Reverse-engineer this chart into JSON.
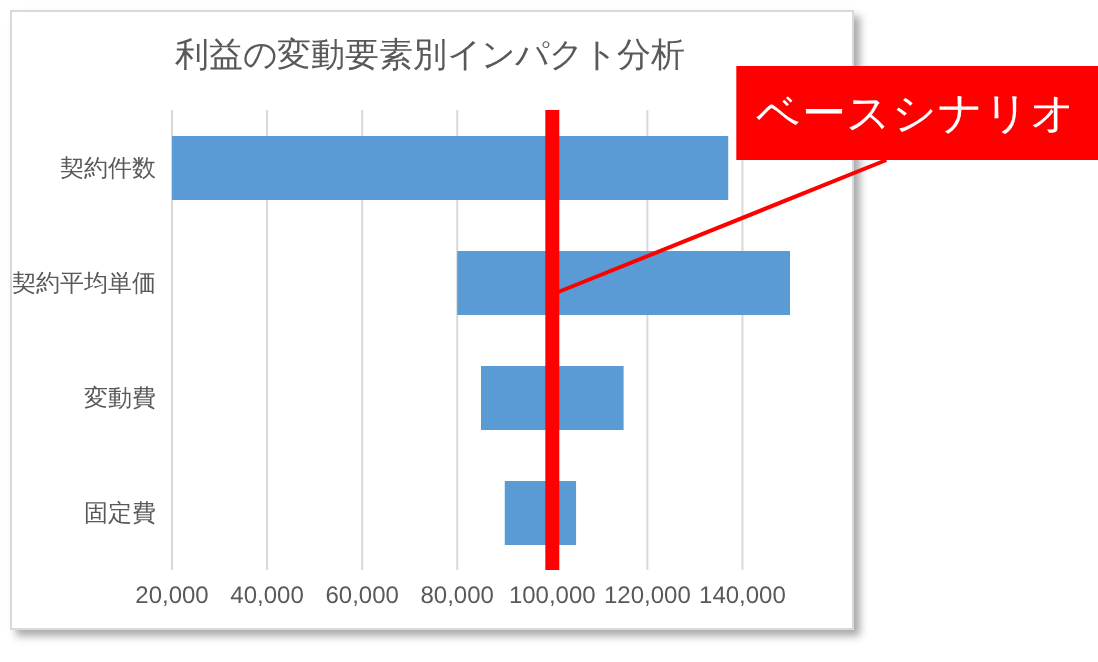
{
  "chart_data": {
    "type": "bar",
    "orientation": "horizontal",
    "title": "利益の変動要素別インパクト分析",
    "categories": [
      "契約件数",
      "契約平均単価",
      "変動費",
      "固定費"
    ],
    "base": [
      20000,
      80000,
      85000,
      90000
    ],
    "values": [
      117000,
      70000,
      30000,
      15000
    ],
    "color": "#5b9bd5",
    "xlim": [
      20000,
      150000
    ],
    "xticks": [
      {
        "value": 20000,
        "label": "20,000"
      },
      {
        "value": 40000,
        "label": "40,000"
      },
      {
        "value": 60000,
        "label": "60,000"
      },
      {
        "value": 80000,
        "label": "80,000"
      },
      {
        "value": 100000,
        "label": "100,000"
      },
      {
        "value": 120000,
        "label": "120,000"
      },
      {
        "value": 140000,
        "label": "140,000"
      }
    ],
    "grid": "x",
    "ref_lines": [
      {
        "axis": "x",
        "value": 100000,
        "label": "ベースシナリオ",
        "color": "#ff0000"
      }
    ]
  }
}
